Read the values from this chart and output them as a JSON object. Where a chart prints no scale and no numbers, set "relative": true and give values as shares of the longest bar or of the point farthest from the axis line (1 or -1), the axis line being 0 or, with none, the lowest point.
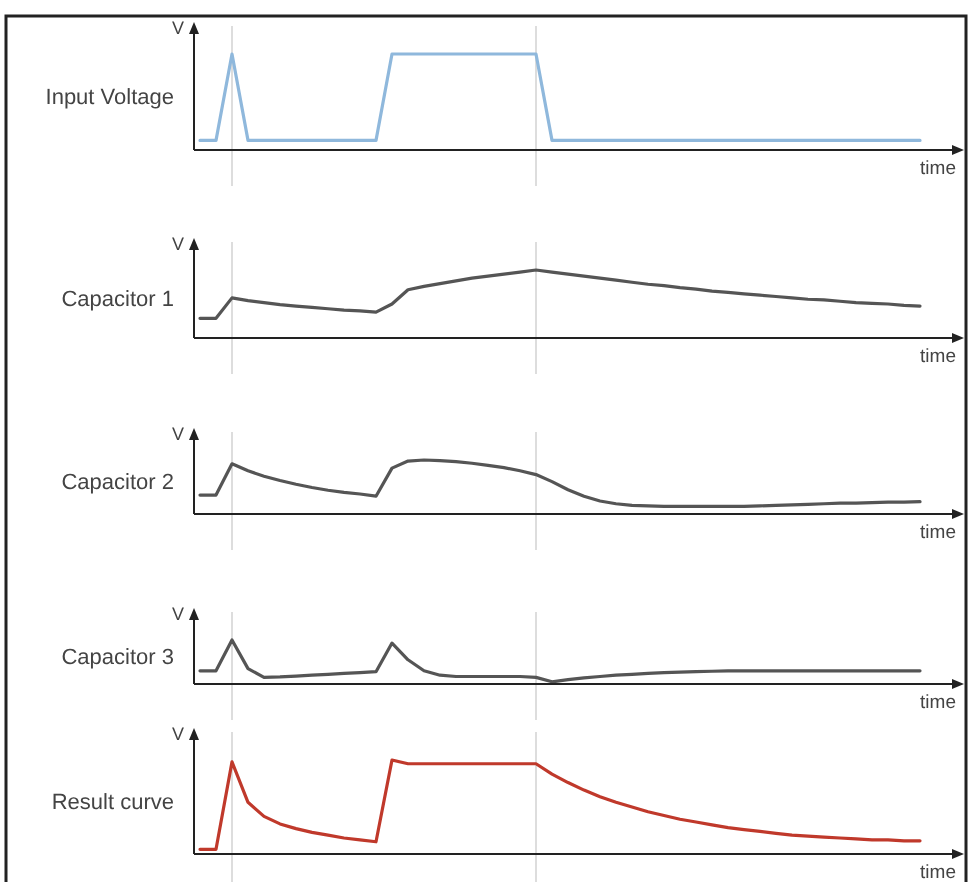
{
  "chart_data": [
    {
      "type": "line",
      "title": "Input Voltage",
      "xlabel": "time",
      "ylabel": "V",
      "relative": true,
      "categories": [
        null,
        null,
        null,
        null,
        null,
        null,
        null,
        null,
        null,
        null,
        null,
        null,
        null,
        null,
        null,
        null,
        null,
        null,
        null,
        null,
        null,
        null,
        null,
        null,
        null,
        null,
        null,
        null,
        null,
        null,
        null,
        null,
        null,
        null,
        null,
        null,
        null,
        null,
        null,
        null,
        null,
        null,
        null,
        null,
        null,
        null
      ],
      "series": [
        {
          "color": "#8fb8dc",
          "values": [
            0.1,
            0.1,
            1,
            0.1,
            0.1,
            0.1,
            0.1,
            0.1,
            0.1,
            0.1,
            0.1,
            0.1,
            1,
            1,
            1,
            1,
            1,
            1,
            1,
            1,
            1,
            1,
            0.1,
            0.1,
            0.1,
            0.1,
            0.1,
            0.1,
            0.1,
            0.1,
            0.1,
            0.1,
            0.1,
            0.1,
            0.1,
            0.1,
            0.1,
            0.1,
            0.1,
            0.1,
            0.1,
            0.1,
            0.1,
            0.1,
            0.1,
            0.1
          ]
        }
      ]
    },
    {
      "type": "line",
      "title": "Capacitor 1",
      "xlabel": "time",
      "ylabel": "V",
      "relative": true,
      "categories": [
        null,
        null,
        null,
        null,
        null,
        null,
        null,
        null,
        null,
        null,
        null,
        null,
        null,
        null,
        null,
        null,
        null,
        null,
        null,
        null,
        null,
        null,
        null,
        null,
        null,
        null,
        null,
        null,
        null,
        null,
        null,
        null,
        null,
        null,
        null,
        null,
        null,
        null,
        null,
        null,
        null,
        null,
        null,
        null,
        null,
        null
      ],
      "series": [
        {
          "color": "#555555",
          "values": [
            0.29,
            0.29,
            0.59,
            0.55,
            0.52,
            0.49,
            0.47,
            0.45,
            0.43,
            0.41,
            0.4,
            0.38,
            0.5,
            0.71,
            0.76,
            0.8,
            0.84,
            0.88,
            0.91,
            0.94,
            0.97,
            1,
            0.97,
            0.94,
            0.91,
            0.88,
            0.85,
            0.82,
            0.79,
            0.77,
            0.74,
            0.72,
            0.69,
            0.67,
            0.65,
            0.63,
            0.61,
            0.59,
            0.57,
            0.56,
            0.54,
            0.52,
            0.51,
            0.5,
            0.48,
            0.47
          ]
        }
      ]
    },
    {
      "type": "line",
      "title": "Capacitor 2",
      "xlabel": "time",
      "ylabel": "V",
      "relative": true,
      "categories": [
        null,
        null,
        null,
        null,
        null,
        null,
        null,
        null,
        null,
        null,
        null,
        null,
        null,
        null,
        null,
        null,
        null,
        null,
        null,
        null,
        null,
        null,
        null,
        null,
        null,
        null,
        null,
        null,
        null,
        null,
        null,
        null,
        null,
        null,
        null,
        null,
        null,
        null,
        null,
        null,
        null,
        null,
        null,
        null,
        null,
        null
      ],
      "series": [
        {
          "color": "#555555",
          "values": [
            0.35,
            0.35,
            0.93,
            0.8,
            0.7,
            0.62,
            0.55,
            0.49,
            0.44,
            0.4,
            0.37,
            0.33,
            0.85,
            0.98,
            1,
            0.99,
            0.97,
            0.94,
            0.9,
            0.86,
            0.8,
            0.73,
            0.6,
            0.45,
            0.33,
            0.24,
            0.19,
            0.16,
            0.15,
            0.14,
            0.14,
            0.14,
            0.14,
            0.14,
            0.14,
            0.15,
            0.16,
            0.17,
            0.18,
            0.19,
            0.2,
            0.2,
            0.21,
            0.22,
            0.22,
            0.23
          ]
        }
      ]
    },
    {
      "type": "line",
      "title": "Capacitor 3",
      "xlabel": "time",
      "ylabel": "V",
      "relative": true,
      "categories": [
        null,
        null,
        null,
        null,
        null,
        null,
        null,
        null,
        null,
        null,
        null,
        null,
        null,
        null,
        null,
        null,
        null,
        null,
        null,
        null,
        null,
        null,
        null,
        null,
        null,
        null,
        null,
        null,
        null,
        null,
        null,
        null,
        null,
        null,
        null,
        null,
        null,
        null,
        null,
        null,
        null,
        null,
        null,
        null,
        null,
        null
      ],
      "series": [
        {
          "color": "#555555",
          "values": [
            0.3,
            0.3,
            1,
            0.35,
            0.15,
            0.16,
            0.18,
            0.2,
            0.22,
            0.24,
            0.26,
            0.28,
            0.93,
            0.55,
            0.3,
            0.2,
            0.17,
            0.17,
            0.17,
            0.17,
            0.17,
            0.15,
            0.05,
            0.1,
            0.14,
            0.17,
            0.2,
            0.22,
            0.24,
            0.26,
            0.27,
            0.28,
            0.29,
            0.3,
            0.3,
            0.3,
            0.3,
            0.3,
            0.3,
            0.3,
            0.3,
            0.3,
            0.3,
            0.3,
            0.3,
            0.3
          ]
        }
      ]
    },
    {
      "type": "line",
      "title": "Result curve",
      "xlabel": "time",
      "ylabel": "V",
      "relative": true,
      "categories": [
        null,
        null,
        null,
        null,
        null,
        null,
        null,
        null,
        null,
        null,
        null,
        null,
        null,
        null,
        null,
        null,
        null,
        null,
        null,
        null,
        null,
        null,
        null,
        null,
        null,
        null,
        null,
        null,
        null,
        null,
        null,
        null,
        null,
        null,
        null,
        null,
        null,
        null,
        null,
        null,
        null,
        null,
        null,
        null,
        null,
        null
      ],
      "series": [
        {
          "color": "#c0392b",
          "values": [
            0.05,
            0.05,
            0.98,
            0.55,
            0.4,
            0.32,
            0.27,
            0.23,
            0.2,
            0.17,
            0.15,
            0.13,
            1,
            0.96,
            0.96,
            0.96,
            0.96,
            0.96,
            0.96,
            0.96,
            0.96,
            0.96,
            0.85,
            0.76,
            0.68,
            0.61,
            0.55,
            0.5,
            0.45,
            0.41,
            0.37,
            0.34,
            0.31,
            0.28,
            0.26,
            0.24,
            0.22,
            0.2,
            0.19,
            0.18,
            0.17,
            0.16,
            0.15,
            0.15,
            0.14,
            0.14
          ]
        }
      ]
    }
  ]
}
